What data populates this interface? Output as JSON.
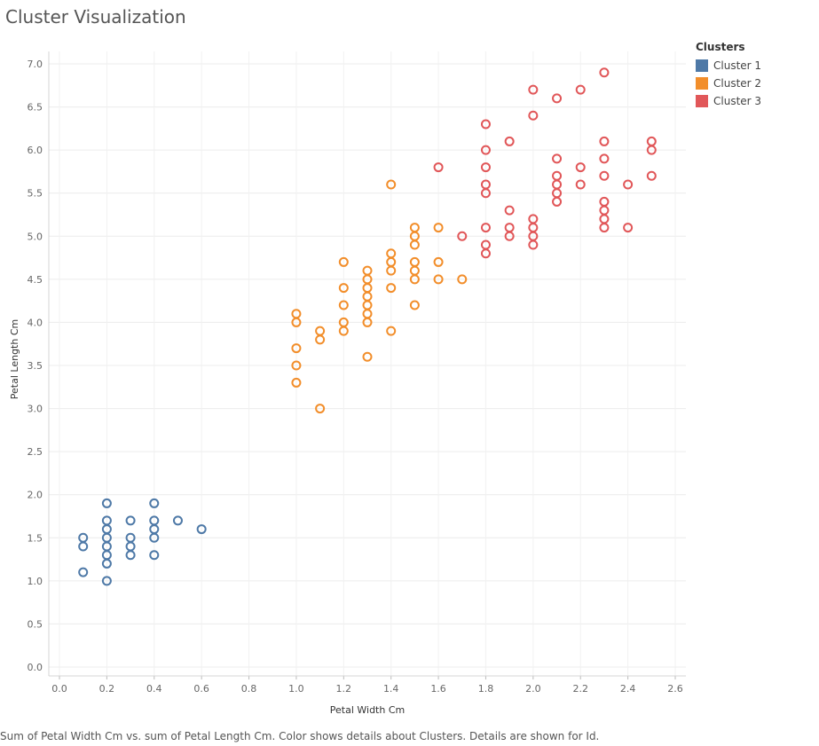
{
  "chart_data": {
    "type": "scatter",
    "title": "Cluster Visualization",
    "xlabel": "Petal Width Cm",
    "ylabel": "Petal Length Cm",
    "xlim": [
      -0.05,
      2.65
    ],
    "ylim": [
      0.0,
      7.0
    ],
    "x_ticks": [
      "0.0",
      "0.2",
      "0.4",
      "0.6",
      "0.8",
      "1.0",
      "1.2",
      "1.4",
      "1.6",
      "1.8",
      "2.0",
      "2.2",
      "2.4",
      "2.6"
    ],
    "y_ticks": [
      "0.0",
      "0.5",
      "1.0",
      "1.5",
      "2.0",
      "2.5",
      "3.0",
      "3.5",
      "4.0",
      "4.5",
      "5.0",
      "5.5",
      "6.0",
      "6.5",
      "7.0"
    ],
    "grid": true,
    "legend": {
      "title": "Clusters",
      "position": "top-right"
    },
    "caption": "Sum of Petal Width Cm vs. sum of Petal Length Cm.  Color shows details about Clusters.  Details are shown for Id.",
    "series": [
      {
        "name": "Cluster 1",
        "color": "#4e79a7",
        "points": [
          [
            0.1,
            1.5
          ],
          [
            0.1,
            1.4
          ],
          [
            0.1,
            1.1
          ],
          [
            0.2,
            1.9
          ],
          [
            0.2,
            1.7
          ],
          [
            0.2,
            1.6
          ],
          [
            0.2,
            1.5
          ],
          [
            0.2,
            1.4
          ],
          [
            0.2,
            1.3
          ],
          [
            0.2,
            1.2
          ],
          [
            0.2,
            1.0
          ],
          [
            0.3,
            1.7
          ],
          [
            0.3,
            1.5
          ],
          [
            0.3,
            1.4
          ],
          [
            0.3,
            1.3
          ],
          [
            0.4,
            1.9
          ],
          [
            0.4,
            1.7
          ],
          [
            0.4,
            1.6
          ],
          [
            0.4,
            1.5
          ],
          [
            0.4,
            1.3
          ],
          [
            0.5,
            1.7
          ],
          [
            0.6,
            1.6
          ]
        ]
      },
      {
        "name": "Cluster 2",
        "color": "#f28e2b",
        "points": [
          [
            1.0,
            4.1
          ],
          [
            1.0,
            4.0
          ],
          [
            1.0,
            3.7
          ],
          [
            1.0,
            3.5
          ],
          [
            1.0,
            3.3
          ],
          [
            1.1,
            3.9
          ],
          [
            1.1,
            3.8
          ],
          [
            1.1,
            3.0
          ],
          [
            1.2,
            4.7
          ],
          [
            1.2,
            4.4
          ],
          [
            1.2,
            4.2
          ],
          [
            1.2,
            4.0
          ],
          [
            1.2,
            3.9
          ],
          [
            1.3,
            4.6
          ],
          [
            1.3,
            4.5
          ],
          [
            1.3,
            4.4
          ],
          [
            1.3,
            4.3
          ],
          [
            1.3,
            4.2
          ],
          [
            1.3,
            4.1
          ],
          [
            1.3,
            4.0
          ],
          [
            1.3,
            3.6
          ],
          [
            1.4,
            5.6
          ],
          [
            1.4,
            4.8
          ],
          [
            1.4,
            4.7
          ],
          [
            1.4,
            4.6
          ],
          [
            1.4,
            4.4
          ],
          [
            1.4,
            3.9
          ],
          [
            1.5,
            5.1
          ],
          [
            1.5,
            5.0
          ],
          [
            1.5,
            4.9
          ],
          [
            1.5,
            4.7
          ],
          [
            1.5,
            4.6
          ],
          [
            1.5,
            4.5
          ],
          [
            1.5,
            4.2
          ],
          [
            1.6,
            5.1
          ],
          [
            1.6,
            4.7
          ],
          [
            1.6,
            4.5
          ],
          [
            1.7,
            4.5
          ]
        ]
      },
      {
        "name": "Cluster 3",
        "color": "#e15759",
        "points": [
          [
            1.6,
            5.8
          ],
          [
            1.7,
            5.0
          ],
          [
            1.8,
            6.3
          ],
          [
            1.8,
            6.0
          ],
          [
            1.8,
            5.8
          ],
          [
            1.8,
            5.6
          ],
          [
            1.8,
            5.5
          ],
          [
            1.8,
            5.1
          ],
          [
            1.8,
            4.9
          ],
          [
            1.8,
            4.8
          ],
          [
            1.9,
            6.1
          ],
          [
            1.9,
            5.3
          ],
          [
            1.9,
            5.1
          ],
          [
            1.9,
            5.0
          ],
          [
            2.0,
            6.7
          ],
          [
            2.0,
            6.4
          ],
          [
            2.0,
            5.2
          ],
          [
            2.0,
            5.1
          ],
          [
            2.0,
            5.0
          ],
          [
            2.0,
            4.9
          ],
          [
            2.1,
            6.6
          ],
          [
            2.1,
            5.9
          ],
          [
            2.1,
            5.7
          ],
          [
            2.1,
            5.6
          ],
          [
            2.1,
            5.5
          ],
          [
            2.1,
            5.4
          ],
          [
            2.2,
            6.7
          ],
          [
            2.2,
            5.8
          ],
          [
            2.2,
            5.6
          ],
          [
            2.3,
            6.9
          ],
          [
            2.3,
            6.1
          ],
          [
            2.3,
            5.9
          ],
          [
            2.3,
            5.7
          ],
          [
            2.3,
            5.4
          ],
          [
            2.3,
            5.3
          ],
          [
            2.3,
            5.2
          ],
          [
            2.3,
            5.1
          ],
          [
            2.4,
            5.6
          ],
          [
            2.4,
            5.1
          ],
          [
            2.5,
            6.1
          ],
          [
            2.5,
            6.0
          ],
          [
            2.5,
            5.7
          ]
        ]
      }
    ]
  }
}
